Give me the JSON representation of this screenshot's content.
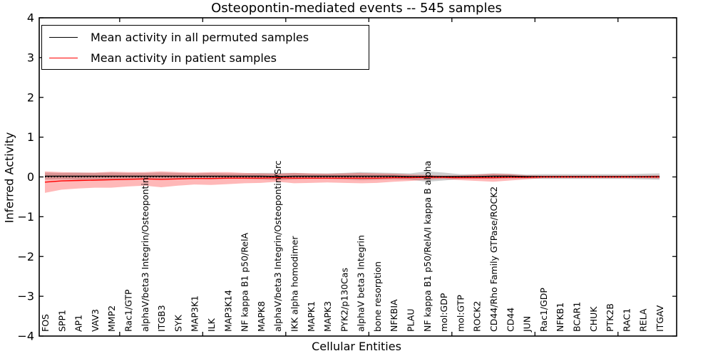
{
  "title": "Osteopontin-mediated events -- 545 samples",
  "xlabel": "Cellular Entities",
  "ylabel": "Inferred Activity",
  "legend": {
    "items": [
      {
        "label": "Mean activity in all permuted samples",
        "color": "#000000"
      },
      {
        "label": "Mean activity in patient samples",
        "color": "#ff0000"
      }
    ]
  },
  "colors": {
    "permuted_line": "#000000",
    "patient_line": "#ff0000",
    "permuted_band": "rgba(90,90,90,0.30)",
    "patient_band": "rgba(255,0,0,0.28)",
    "zero_line": "#000000",
    "axis": "#000000",
    "background": "#ffffff"
  },
  "chart_data": {
    "type": "line",
    "title": "Osteopontin-mediated events -- 545 samples",
    "xlabel": "Cellular Entities",
    "ylabel": "Inferred Activity",
    "ylim": [
      -4,
      4
    ],
    "ytick_labels": [
      "4",
      "3",
      "2",
      "1",
      "0",
      "−1",
      "−2",
      "−3",
      "−4"
    ],
    "ytick_values": [
      4,
      3,
      2,
      1,
      0,
      -1,
      -2,
      -3,
      -4
    ],
    "grid": false,
    "legend_position": "upper left",
    "zero_line": {
      "y": 0,
      "style": "dotted",
      "color": "#000000"
    },
    "categories": [
      "FOS",
      "SPP1",
      "AP1",
      "VAV3",
      "MMP2",
      "Rac1/GTP",
      "alphaV/beta3 Integrin/Osteopontin",
      "ITGB3",
      "SYK",
      "MAP3K1",
      "ILK",
      "MAP3K14",
      "NF kappa B1 p50/RelA",
      "MAPK8",
      "alphaV/beta3 Integrin/Osteopontin/Src",
      "IKK alpha homodimer",
      "MAPK1",
      "MAPK3",
      "PYK2/p130Cas",
      "alphaV beta3 Integrin",
      "bone resorption",
      "NFKBIA",
      "PLAU",
      "NF kappa B1 p50/RelA/I kappa B alpha",
      "mol:GDP",
      "mol:GTP",
      "ROCK2",
      "CD44/Rho Family GTPase/ROCK2",
      "CD44",
      "JUN",
      "Rac1/GDP",
      "NFKB1",
      "BCAR1",
      "CHUK",
      "PTK2B",
      "RAC1",
      "RELA",
      "ITGAV"
    ],
    "series": [
      {
        "name": "Mean activity in all permuted samples",
        "color": "#000000",
        "values": [
          0.02,
          0.02,
          0.02,
          0.02,
          0.02,
          0.02,
          0.02,
          0.02,
          0.02,
          0.02,
          0.02,
          0.02,
          0.02,
          0.02,
          0.01,
          0.02,
          0.02,
          0.02,
          0.02,
          0.02,
          0.02,
          0.02,
          0.01,
          0.01,
          0.01,
          0.01,
          0.01,
          0.02,
          0.02,
          0.01,
          0.01,
          0.01,
          0.01,
          0.01,
          0.01,
          0.01,
          0.01,
          0.01
        ],
        "band_halfwidth": [
          0.09,
          0.08,
          0.09,
          0.08,
          0.09,
          0.08,
          0.08,
          0.09,
          0.08,
          0.07,
          0.08,
          0.07,
          0.07,
          0.08,
          0.09,
          0.08,
          0.07,
          0.07,
          0.08,
          0.1,
          0.09,
          0.08,
          0.08,
          0.13,
          0.1,
          0.06,
          0.06,
          0.07,
          0.06,
          0.05,
          0.06,
          0.06,
          0.06,
          0.06,
          0.06,
          0.06,
          0.07,
          0.08
        ]
      },
      {
        "name": "Mean activity in patient samples",
        "color": "#ff0000",
        "values": [
          -0.13,
          -0.1,
          -0.09,
          -0.08,
          -0.07,
          -0.06,
          -0.05,
          -0.06,
          -0.05,
          -0.04,
          -0.04,
          -0.03,
          -0.03,
          -0.03,
          -0.02,
          -0.03,
          -0.03,
          -0.03,
          -0.03,
          -0.03,
          -0.03,
          -0.02,
          -0.02,
          -0.01,
          -0.01,
          -0.02,
          -0.02,
          -0.02,
          -0.01,
          -0.01,
          0.0,
          0.0,
          0.0,
          0.0,
          0.0,
          0.0,
          0.0,
          0.0
        ],
        "band_halfwidth": [
          0.27,
          0.22,
          0.2,
          0.19,
          0.2,
          0.18,
          0.17,
          0.2,
          0.17,
          0.15,
          0.16,
          0.15,
          0.13,
          0.12,
          0.1,
          0.13,
          0.12,
          0.11,
          0.12,
          0.13,
          0.12,
          0.1,
          0.08,
          0.06,
          0.04,
          0.06,
          0.08,
          0.1,
          0.08,
          0.05,
          0.03,
          0.03,
          0.03,
          0.03,
          0.03,
          0.03,
          0.03,
          0.04
        ]
      }
    ]
  }
}
